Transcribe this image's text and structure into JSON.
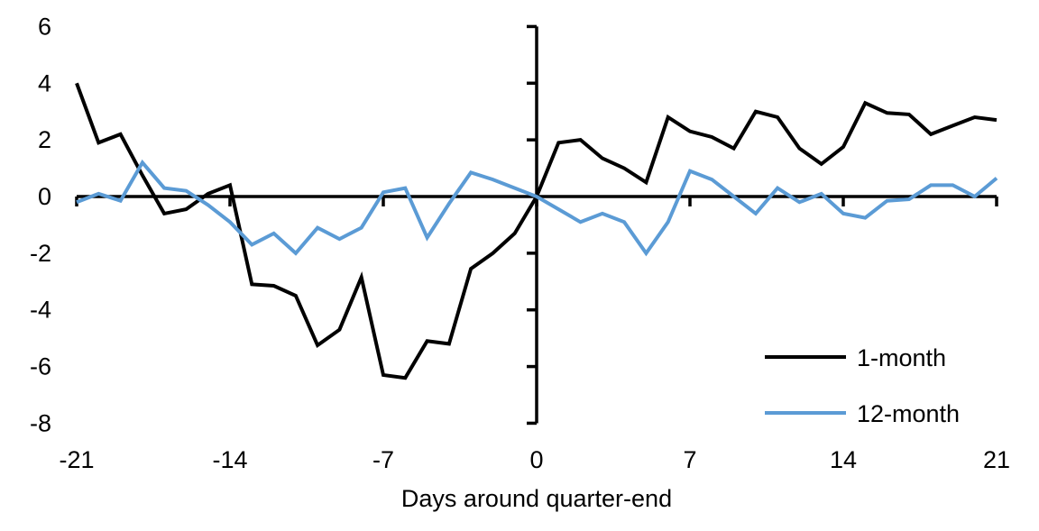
{
  "figure": {
    "background": "#ffffff",
    "axis_color": "#000000"
  },
  "legend": {
    "position": "lower-right",
    "items": [
      {
        "label": "1-month",
        "color": "#000000"
      },
      {
        "label": "12-month",
        "color": "#5B9BD5"
      }
    ]
  },
  "chart_data": {
    "type": "line",
    "title": "",
    "xlabel": "Days around quarter-end",
    "ylabel": "",
    "xlim": [
      -21,
      21
    ],
    "ylim": [
      -8,
      6
    ],
    "x_ticks": [
      -21,
      -14,
      -7,
      0,
      7,
      14,
      21
    ],
    "y_ticks": [
      -8,
      -6,
      -4,
      -2,
      0,
      2,
      4,
      6
    ],
    "grid": false,
    "axis_style": "cross-at-zero",
    "legend_position": "lower right",
    "x": [
      -21,
      -20,
      -19,
      -18,
      -17,
      -16,
      -15,
      -14,
      -13,
      -12,
      -11,
      -10,
      -9,
      -8,
      -7,
      -6,
      -5,
      -4,
      -3,
      -2,
      -1,
      0,
      1,
      2,
      3,
      4,
      5,
      6,
      7,
      8,
      9,
      10,
      11,
      12,
      13,
      14,
      15,
      16,
      17,
      18,
      19,
      20,
      21
    ],
    "series": [
      {
        "name": "1-month",
        "color": "#000000",
        "values": [
          4.0,
          1.9,
          2.2,
          0.75,
          -0.6,
          -0.45,
          0.1,
          0.4,
          -3.1,
          -3.15,
          -3.5,
          -5.25,
          -4.7,
          -2.85,
          -6.3,
          -6.4,
          -5.1,
          -5.2,
          -2.55,
          -2.0,
          -1.3,
          0.0,
          1.9,
          2.0,
          1.35,
          1.0,
          0.5,
          2.8,
          2.3,
          2.1,
          1.7,
          3.0,
          2.8,
          1.7,
          1.15,
          1.75,
          3.3,
          2.95,
          2.9,
          2.2,
          2.5,
          2.8,
          2.7
        ]
      },
      {
        "name": "12-month",
        "color": "#5B9BD5",
        "values": [
          -0.2,
          0.1,
          -0.15,
          1.2,
          0.3,
          0.2,
          -0.3,
          -0.9,
          -1.7,
          -1.3,
          -2.0,
          -1.1,
          -1.5,
          -1.1,
          0.15,
          0.3,
          -1.45,
          -0.25,
          0.85,
          0.6,
          0.3,
          0.0,
          -0.45,
          -0.9,
          -0.6,
          -0.9,
          -2.0,
          -0.9,
          0.9,
          0.6,
          0.0,
          -0.6,
          0.3,
          -0.2,
          0.1,
          -0.6,
          -0.75,
          -0.15,
          -0.1,
          0.4,
          0.4,
          0.0,
          0.65
        ]
      }
    ]
  }
}
